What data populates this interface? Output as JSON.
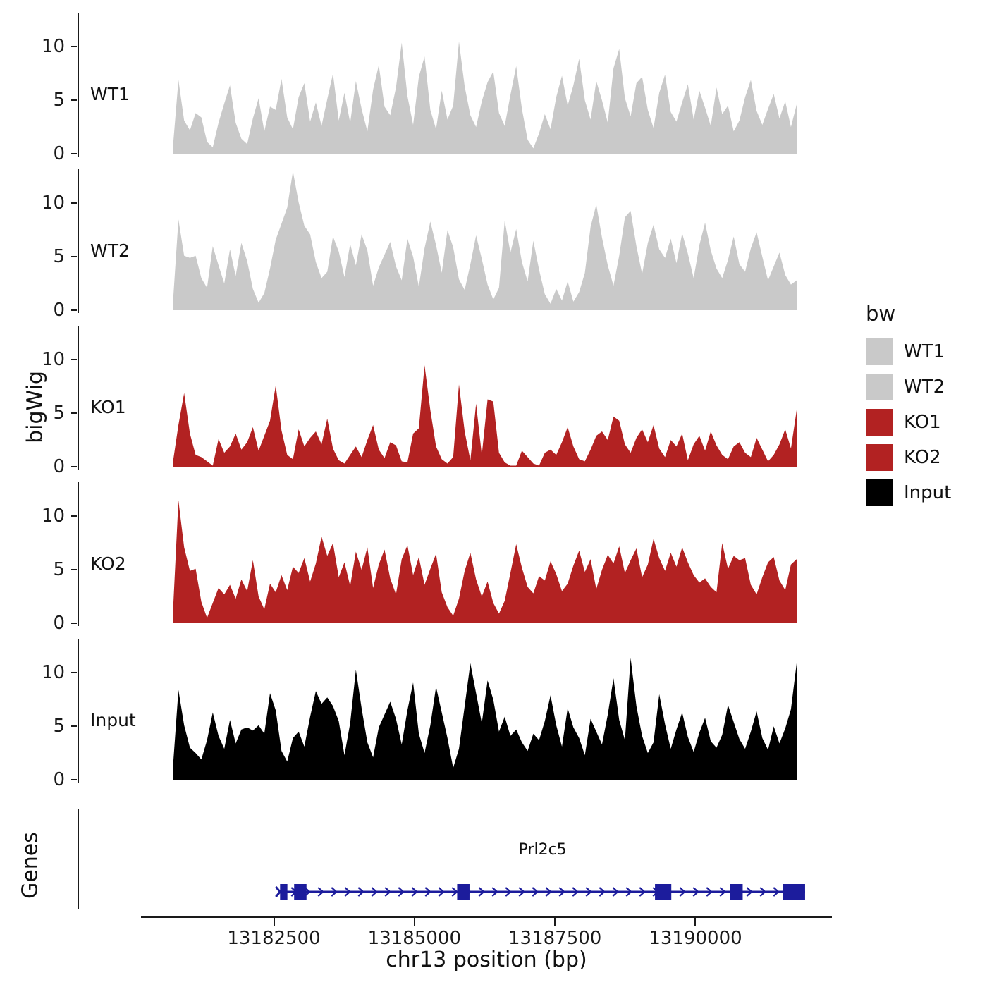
{
  "legend": {
    "title": "bw",
    "items": [
      {
        "label": "WT1",
        "color": "#c9c9c9"
      },
      {
        "label": "WT2",
        "color": "#c9c9c9"
      },
      {
        "label": "KO1",
        "color": "#b22222"
      },
      {
        "label": "KO2",
        "color": "#b22222"
      },
      {
        "label": "Input",
        "color": "#000000"
      }
    ]
  },
  "chart_data": {
    "type": "area",
    "title": "",
    "xlabel": "chr13 position (bp)",
    "ylabel": "bigWig",
    "grid": false,
    "legend_position": "right",
    "x_range": [
      13180700,
      13191800
    ],
    "x_ticks": [
      13182500,
      13185000,
      13187500,
      13190000
    ],
    "y_ticks": [
      0,
      5,
      10
    ],
    "y_max": 13.2,
    "tracks": [
      {
        "id": "WT1",
        "label": "WT1",
        "color": "#c9c9c9",
        "values": [
          0.4,
          6.9,
          3.1,
          2.2,
          3.8,
          3.4,
          1.1,
          0.6,
          2.9,
          4.7,
          6.4,
          2.9,
          1.4,
          0.9,
          3.3,
          5.2,
          2.1,
          4.4,
          4.1,
          7.0,
          3.4,
          2.3,
          5.3,
          6.6,
          3.0,
          4.8,
          2.6,
          5.1,
          7.5,
          3.1,
          5.7,
          2.9,
          6.8,
          4.2,
          2.1,
          6.0,
          8.3,
          4.4,
          3.6,
          6.2,
          10.4,
          5.4,
          2.7,
          7.2,
          9.1,
          4.1,
          2.3,
          5.9,
          3.2,
          4.5,
          10.5,
          6.3,
          3.6,
          2.5,
          4.9,
          6.7,
          7.7,
          3.8,
          2.6,
          5.5,
          8.2,
          4.2,
          1.3,
          0.5,
          1.9,
          3.7,
          2.3,
          5.3,
          7.3,
          4.5,
          6.4,
          8.9,
          5.0,
          3.2,
          6.8,
          5.0,
          2.9,
          8.0,
          9.8,
          5.2,
          3.5,
          6.6,
          7.2,
          4.1,
          2.4,
          5.7,
          7.4,
          3.9,
          3.0,
          4.8,
          6.5,
          3.2,
          5.9,
          4.3,
          2.6,
          6.2,
          3.7,
          4.5,
          2.1,
          3.1,
          5.3,
          6.9,
          4.0,
          2.7,
          4.2,
          5.6,
          3.3,
          4.9,
          2.5,
          4.6
        ]
      },
      {
        "id": "WT2",
        "label": "WT2",
        "color": "#c9c9c9",
        "values": [
          0.4,
          8.5,
          5.1,
          4.9,
          5.1,
          3.0,
          2.1,
          6.0,
          4.2,
          2.5,
          5.7,
          3.2,
          6.3,
          4.6,
          2.0,
          0.7,
          1.6,
          3.9,
          6.6,
          8.1,
          9.6,
          13.0,
          10.1,
          7.9,
          7.1,
          4.5,
          3.0,
          3.6,
          6.9,
          5.5,
          3.1,
          6.2,
          4.2,
          7.1,
          5.6,
          2.3,
          4.0,
          5.2,
          6.4,
          4.1,
          2.8,
          6.7,
          5.0,
          2.2,
          5.8,
          8.3,
          6.1,
          3.5,
          7.5,
          5.9,
          2.9,
          1.9,
          4.3,
          7.0,
          4.8,
          2.4,
          1.0,
          2.1,
          8.4,
          5.4,
          7.6,
          4.5,
          2.7,
          6.5,
          3.8,
          1.5,
          0.6,
          2.0,
          0.9,
          2.7,
          0.8,
          1.7,
          3.5,
          7.8,
          9.9,
          6.8,
          4.2,
          2.3,
          5.1,
          8.7,
          9.3,
          6.0,
          3.4,
          6.3,
          8.0,
          5.7,
          4.9,
          6.7,
          4.4,
          7.2,
          5.3,
          3.0,
          6.1,
          8.2,
          5.6,
          3.9,
          3.0,
          4.7,
          6.9,
          4.3,
          3.6,
          5.8,
          7.3,
          5.0,
          2.8,
          4.1,
          5.4,
          3.3,
          2.4,
          2.8
        ]
      },
      {
        "id": "KO1",
        "label": "KO1",
        "color": "#b22222",
        "values": [
          0.3,
          3.9,
          6.9,
          3.1,
          1.1,
          0.9,
          0.5,
          0.1,
          2.6,
          1.3,
          1.9,
          3.1,
          1.6,
          2.3,
          3.7,
          1.5,
          2.9,
          4.3,
          7.6,
          3.4,
          1.1,
          0.7,
          3.5,
          1.9,
          2.7,
          3.3,
          2.1,
          4.5,
          1.7,
          0.6,
          0.3,
          1.1,
          1.9,
          0.9,
          2.5,
          3.9,
          1.6,
          0.8,
          2.3,
          2.0,
          0.5,
          0.4,
          3.1,
          3.6,
          9.5,
          5.3,
          1.9,
          0.7,
          0.3,
          0.9,
          7.7,
          3.3,
          0.6,
          5.9,
          1.1,
          6.3,
          6.1,
          1.3,
          0.4,
          0.1,
          0.1,
          1.5,
          0.9,
          0.3,
          0.1,
          1.3,
          1.6,
          1.1,
          2.3,
          3.7,
          1.9,
          0.7,
          0.5,
          1.6,
          2.9,
          3.3,
          2.5,
          4.7,
          4.3,
          2.1,
          1.3,
          2.7,
          3.5,
          2.3,
          3.9,
          1.7,
          0.9,
          2.5,
          1.9,
          3.1,
          0.6,
          2.1,
          2.9,
          1.5,
          3.3,
          2.0,
          1.1,
          0.7,
          1.9,
          2.3,
          1.3,
          0.9,
          2.7,
          1.6,
          0.5,
          1.1,
          2.1,
          3.5,
          1.7,
          5.3
        ]
      },
      {
        "id": "KO2",
        "label": "KO2",
        "color": "#b22222",
        "values": [
          0.6,
          11.5,
          7.1,
          4.9,
          5.1,
          2.0,
          0.5,
          1.9,
          3.3,
          2.7,
          3.6,
          2.3,
          4.1,
          3.0,
          5.9,
          2.5,
          1.3,
          3.7,
          2.9,
          4.5,
          3.1,
          5.3,
          4.7,
          6.1,
          3.9,
          5.6,
          8.1,
          6.3,
          7.5,
          4.3,
          5.7,
          3.5,
          6.7,
          5.0,
          7.1,
          3.3,
          5.5,
          6.9,
          4.2,
          2.7,
          6.0,
          7.3,
          4.5,
          6.2,
          3.6,
          5.1,
          6.5,
          2.9,
          1.5,
          0.7,
          2.3,
          4.9,
          6.6,
          4.1,
          2.5,
          3.9,
          1.9,
          0.9,
          2.1,
          4.7,
          7.4,
          5.2,
          3.4,
          2.8,
          4.4,
          4.0,
          5.8,
          4.6,
          3.0,
          3.7,
          5.4,
          6.8,
          4.8,
          6.0,
          3.2,
          5.0,
          6.4,
          5.6,
          7.2,
          4.7,
          5.9,
          7.0,
          4.3,
          5.5,
          7.9,
          6.1,
          4.9,
          6.6,
          5.3,
          7.1,
          5.7,
          4.5,
          3.8,
          4.2,
          3.4,
          2.9,
          7.5,
          5.1,
          6.3,
          5.9,
          6.1,
          3.6,
          2.7,
          4.3,
          5.7,
          6.2,
          4.0,
          3.1,
          5.5,
          6.0
        ]
      },
      {
        "id": "Input",
        "label": "Input",
        "color": "#000000",
        "values": [
          0.9,
          8.4,
          5.1,
          3.0,
          2.5,
          1.9,
          3.7,
          6.3,
          4.1,
          2.9,
          5.6,
          3.4,
          4.7,
          4.9,
          4.6,
          5.1,
          4.3,
          8.1,
          6.5,
          2.7,
          1.7,
          3.9,
          4.5,
          3.1,
          5.9,
          8.3,
          7.1,
          7.7,
          6.9,
          5.5,
          2.3,
          5.3,
          10.3,
          6.7,
          3.5,
          2.1,
          4.9,
          6.1,
          7.3,
          5.7,
          3.3,
          6.5,
          9.1,
          4.3,
          2.5,
          5.1,
          8.7,
          6.3,
          3.9,
          1.1,
          2.9,
          6.9,
          10.9,
          8.1,
          5.3,
          9.3,
          7.5,
          4.5,
          5.9,
          4.1,
          4.7,
          3.5,
          2.7,
          4.3,
          3.7,
          5.5,
          7.9,
          5.1,
          3.1,
          6.7,
          4.9,
          3.9,
          2.3,
          5.7,
          4.5,
          3.3,
          6.1,
          9.5,
          5.6,
          3.7,
          11.4,
          6.9,
          4.1,
          2.5,
          3.5,
          8.0,
          5.2,
          2.9,
          4.7,
          6.3,
          4.0,
          2.6,
          4.4,
          5.8,
          3.6,
          3.0,
          4.2,
          7.0,
          5.4,
          3.8,
          2.9,
          4.5,
          6.4,
          3.9,
          2.8,
          5.0,
          3.4,
          4.8,
          6.6,
          10.9
        ]
      }
    ],
    "genes_panel": {
      "axis_label": "Genes",
      "gene": {
        "name": "Prl2c5",
        "color": "#1c1c9c",
        "strand": "+",
        "start": 13182610,
        "end": 13191950,
        "exons": [
          [
            13182610,
            13182740
          ],
          [
            13182860,
            13183080
          ],
          [
            13185760,
            13185980
          ],
          [
            13189280,
            13189570
          ],
          [
            13190610,
            13190840
          ],
          [
            13191560,
            13191950
          ]
        ]
      }
    }
  }
}
